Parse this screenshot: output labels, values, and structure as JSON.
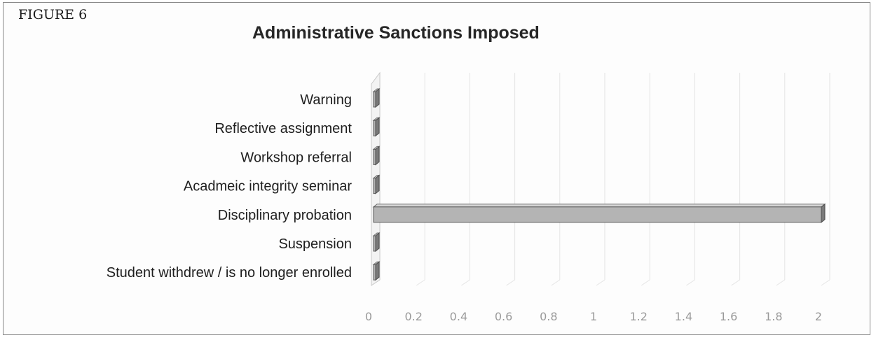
{
  "figure_label": "FIGURE 6",
  "chart_data": {
    "type": "bar",
    "orientation": "horizontal",
    "style": "3d",
    "title": "Administrative Sanctions Imposed",
    "categories": [
      "Warning",
      "Reflective assignment",
      "Workshop referral",
      "Acadmeic integrity seminar",
      "Disciplinary probation",
      "Suspension",
      "Student withdrew / is no longer enrolled"
    ],
    "values": [
      0,
      0,
      0,
      0,
      2,
      0,
      0
    ],
    "xlim": [
      0,
      2
    ],
    "xticks": [
      0,
      0.2,
      0.4,
      0.6,
      0.8,
      1,
      1.2,
      1.4,
      1.6,
      1.8,
      2
    ],
    "xtick_labels": [
      "0",
      "0.2",
      "0.4",
      "0.6",
      "0.8",
      "1",
      "1.2",
      "1.4",
      "1.6",
      "1.8",
      "2"
    ],
    "xlabel": "",
    "ylabel": "",
    "grid": true,
    "legend": "none",
    "bar_color": "#b4b4b4",
    "grid_color": "#e4e4e4",
    "tick_color": "#9a9a9a"
  }
}
